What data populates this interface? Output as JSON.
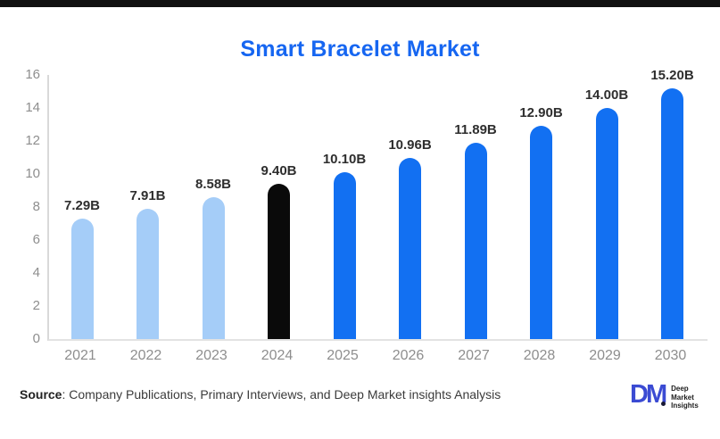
{
  "title": "Smart Bracelet Market",
  "chart_data": {
    "type": "bar",
    "title": "Smart Bracelet Market",
    "categories": [
      "2021",
      "2022",
      "2023",
      "2024",
      "2025",
      "2026",
      "2027",
      "2028",
      "2029",
      "2030"
    ],
    "values": [
      7.29,
      7.91,
      8.58,
      9.4,
      10.1,
      10.96,
      11.89,
      12.9,
      14.0,
      15.2
    ],
    "value_labels": [
      "7.29B",
      "7.91B",
      "8.58B",
      "9.40B",
      "10.10B",
      "10.96B",
      "11.89B",
      "12.90B",
      "14.00B",
      "15.20B"
    ],
    "bar_colors": [
      "#a5cdf8",
      "#a5cdf8",
      "#a5cdf8",
      "#0a0a0a",
      "#1270f2",
      "#1270f2",
      "#1270f2",
      "#1270f2",
      "#1270f2",
      "#1270f2"
    ],
    "xlabel": "",
    "ylabel": "",
    "ylim": [
      0,
      16
    ],
    "yticks": [
      0,
      2,
      4,
      6,
      8,
      10,
      12,
      14,
      16
    ],
    "grid": false,
    "legend": "none"
  },
  "colors": {
    "title_blue": "#1666f1",
    "light_blue": "#a5cdf8",
    "bright_blue": "#1270f2",
    "black_bar": "#0a0a0a",
    "axis_line": "#d9d9d9",
    "tick_text": "#8e8e8e",
    "top_bar": "#111111",
    "logo_blue": "#3b4bd3"
  },
  "footer": {
    "source_label": "Source",
    "source_rest": ": Company Publications, Primary Interviews, and Deep Market insights Analysis"
  },
  "logo": {
    "monogram": "DM",
    "lines": [
      "Deep",
      "Market",
      "Insights"
    ]
  }
}
